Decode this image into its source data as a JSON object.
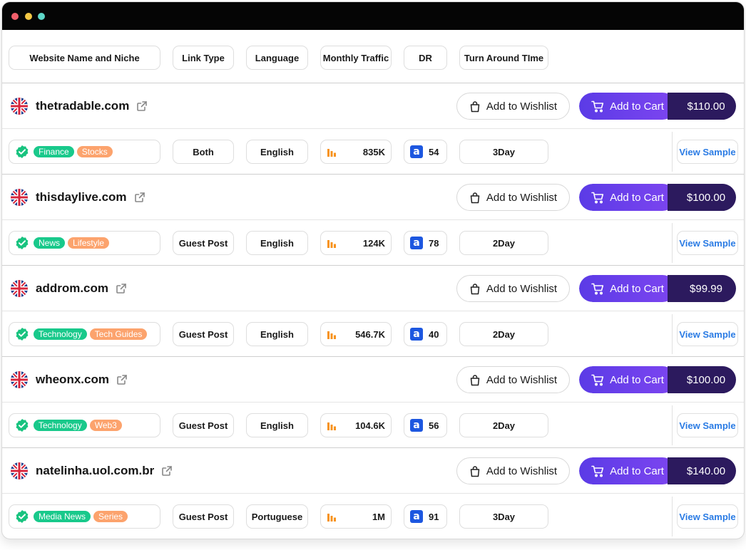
{
  "headers": [
    "Website Name and Niche",
    "Link Type",
    "Language",
    "Monthly Traffic",
    "DR",
    "Turn Around TIme"
  ],
  "wishlist_label": "Add to Wishlist",
  "cart_label": "Add to Cart",
  "sample_label": "View Sample",
  "icons": {
    "flag": "uk-flag-icon",
    "external": "external-link-icon",
    "wishlist": "shopping-bag-icon",
    "cart": "shopping-cart-icon",
    "verified": "verified-check-icon",
    "traffic": "bar-chart-icon",
    "dr": "ahrefs-a-icon"
  },
  "colors": {
    "cart_gradient_start": "#5b3be6",
    "cart_gradient_end": "#7d45f0",
    "price_bg": "#2c1a5e",
    "tag_green": "#19c98b",
    "tag_orange": "#fca36d",
    "sample_text": "#2a7be4"
  },
  "sites": [
    {
      "name": "thetradable.com",
      "price": "$110.00",
      "tags": [
        "Finance",
        "Stocks"
      ],
      "link_type": "Both",
      "language": "English",
      "traffic": "835K",
      "dr": "54",
      "tat": "3Day"
    },
    {
      "name": "thisdaylive.com",
      "price": "$100.00",
      "tags": [
        "News",
        "Lifestyle"
      ],
      "link_type": "Guest Post",
      "language": "English",
      "traffic": "124K",
      "dr": "78",
      "tat": "2Day"
    },
    {
      "name": "addrom.com",
      "price": "$99.99",
      "tags": [
        "Technology",
        "Tech Guides"
      ],
      "link_type": "Guest Post",
      "language": "English",
      "traffic": "546.7K",
      "dr": "40",
      "tat": "2Day"
    },
    {
      "name": "wheonx.com",
      "price": "$100.00",
      "tags": [
        "Technology",
        "Web3"
      ],
      "link_type": "Guest Post",
      "language": "English",
      "traffic": "104.6K",
      "dr": "56",
      "tat": "2Day"
    },
    {
      "name": "natelinha.uol.com.br",
      "price": "$140.00",
      "tags": [
        "Media News",
        "Series"
      ],
      "link_type": "Guest Post",
      "language": "Portuguese",
      "traffic": "1M",
      "dr": "91",
      "tat": "3Day"
    }
  ]
}
